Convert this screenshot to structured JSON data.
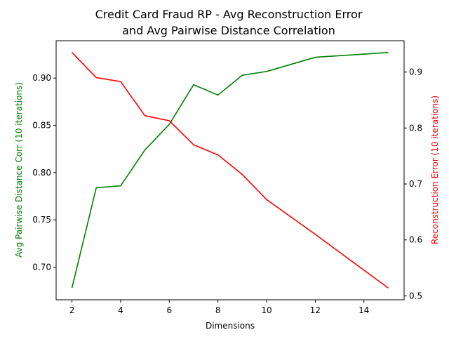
{
  "chart_data": {
    "type": "line",
    "title_line1": "Credit Card Fraud RP - Avg Reconstruction Error",
    "title_line2": "and Avg Pairwise Distance Correlation",
    "xlabel": "Dimensions",
    "x": [
      2,
      3,
      4,
      5,
      6,
      7,
      8,
      9,
      10,
      12,
      15
    ],
    "xlim": [
      1.35,
      15.65
    ],
    "xticks": [
      2,
      4,
      6,
      8,
      10,
      12,
      14
    ],
    "series": [
      {
        "name": "",
        "axis": "left",
        "color": "#008000",
        "ylabel": "Avg Pairwise Distance Corr (10 iterations)",
        "values": [
          0.678,
          0.784,
          0.786,
          0.824,
          0.851,
          0.893,
          0.882,
          0.903,
          0.907,
          0.922,
          0.927
        ],
        "ylim": [
          0.6655,
          0.9395
        ],
        "yticks": [
          "0.70",
          "0.75",
          "0.80",
          "0.85",
          "0.90"
        ]
      },
      {
        "name": "",
        "axis": "right",
        "color": "#ff0000",
        "ylabel": "Reconstruction Error (10 iterations)",
        "values": [
          0.935,
          0.89,
          0.883,
          0.822,
          0.813,
          0.77,
          0.752,
          0.717,
          0.672,
          0.61,
          0.514
        ],
        "ylim": [
          0.493,
          0.956
        ],
        "yticks": [
          "0.5",
          "0.6",
          "0.7",
          "0.8",
          "0.9"
        ]
      }
    ],
    "grid": false,
    "legend": "none"
  }
}
